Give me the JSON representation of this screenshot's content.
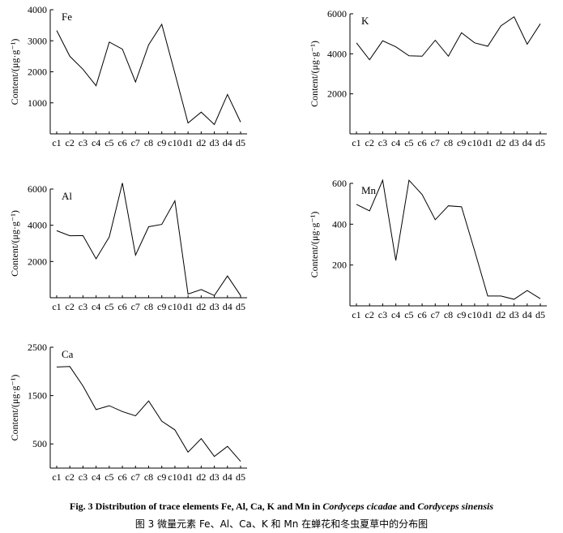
{
  "figure": {
    "caption_en_prefix": "Fig. 3    Distribution of trace elements Fe, Al, Ca, K and Mn in ",
    "caption_en_species1": "Cordyceps cicadae",
    "caption_en_and": " and ",
    "caption_en_species2": "Cordyceps sinensis",
    "caption_zh": "图 3    微量元素 Fe、Al、Ca、K 和 Mn 在蝉花和冬虫夏草中的分布图"
  },
  "chart_data": [
    {
      "type": "line",
      "title": "Fe",
      "ylabel": "Content/(μg·g⁻¹)",
      "categories": [
        "c1",
        "c2",
        "c3",
        "c4",
        "c5",
        "c6",
        "c7",
        "c8",
        "c9",
        "c10",
        "d1",
        "d2",
        "d3",
        "d4",
        "d5"
      ],
      "values": [
        3330,
        2500,
        2080,
        1550,
        2960,
        2730,
        1670,
        2870,
        3530,
        1950,
        350,
        700,
        300,
        1270,
        380
      ],
      "ylim": [
        0,
        4000
      ],
      "yticks": [
        1000,
        2000,
        3000,
        4000
      ],
      "grid": false
    },
    {
      "type": "line",
      "title": "K",
      "ylabel": "Content/(μg·g⁻¹)",
      "categories": [
        "c1",
        "c2",
        "c3",
        "c4",
        "c5",
        "c6",
        "c7",
        "c8",
        "c9",
        "c10",
        "d1",
        "d2",
        "d3",
        "d4",
        "d5"
      ],
      "values": [
        4550,
        3700,
        4650,
        4350,
        3900,
        3880,
        4680,
        3880,
        5050,
        4550,
        4380,
        5400,
        5850,
        4480,
        5500
      ],
      "ylim": [
        0,
        6000
      ],
      "yticks": [
        2000,
        4000,
        6000
      ],
      "grid": false
    },
    {
      "type": "line",
      "title": "Al",
      "ylabel": "Content/(μg·g⁻¹)",
      "categories": [
        "c1",
        "c2",
        "c3",
        "c4",
        "c5",
        "c6",
        "c7",
        "c8",
        "c9",
        "c10",
        "d1",
        "d2",
        "d3",
        "d4",
        "d5"
      ],
      "values": [
        3700,
        3420,
        3430,
        2150,
        3360,
        6330,
        2350,
        3920,
        4050,
        5350,
        200,
        450,
        120,
        1200,
        120
      ],
      "ylim": [
        0,
        6000
      ],
      "yticks": [
        2000,
        4000,
        6000
      ],
      "grid": false
    },
    {
      "type": "line",
      "title": "Mn",
      "ylabel": "Content/(μg·g⁻¹)",
      "categories": [
        "c1",
        "c2",
        "c3",
        "c4",
        "c5",
        "c6",
        "c7",
        "c8",
        "c9",
        "c10",
        "d1",
        "d2",
        "d3",
        "d4",
        "d5"
      ],
      "values": [
        497,
        465,
        615,
        222,
        615,
        545,
        422,
        490,
        485,
        270,
        48,
        48,
        32,
        75,
        35
      ],
      "ylim": [
        0,
        600
      ],
      "yticks": [
        200,
        400,
        600
      ],
      "grid": false
    },
    {
      "type": "line",
      "title": "Ca",
      "ylabel": "Content/(μg·g⁻¹)",
      "categories": [
        "c1",
        "c2",
        "c3",
        "c4",
        "c5",
        "c6",
        "c7",
        "c8",
        "c9",
        "c10",
        "d1",
        "d2",
        "d3",
        "d4",
        "d5"
      ],
      "values": [
        2090,
        2100,
        1700,
        1210,
        1290,
        1170,
        1080,
        1390,
        970,
        790,
        330,
        610,
        240,
        450,
        140
      ],
      "ylim": [
        0,
        2500
      ],
      "yticks": [
        500,
        1500,
        2500
      ],
      "grid": false
    }
  ]
}
